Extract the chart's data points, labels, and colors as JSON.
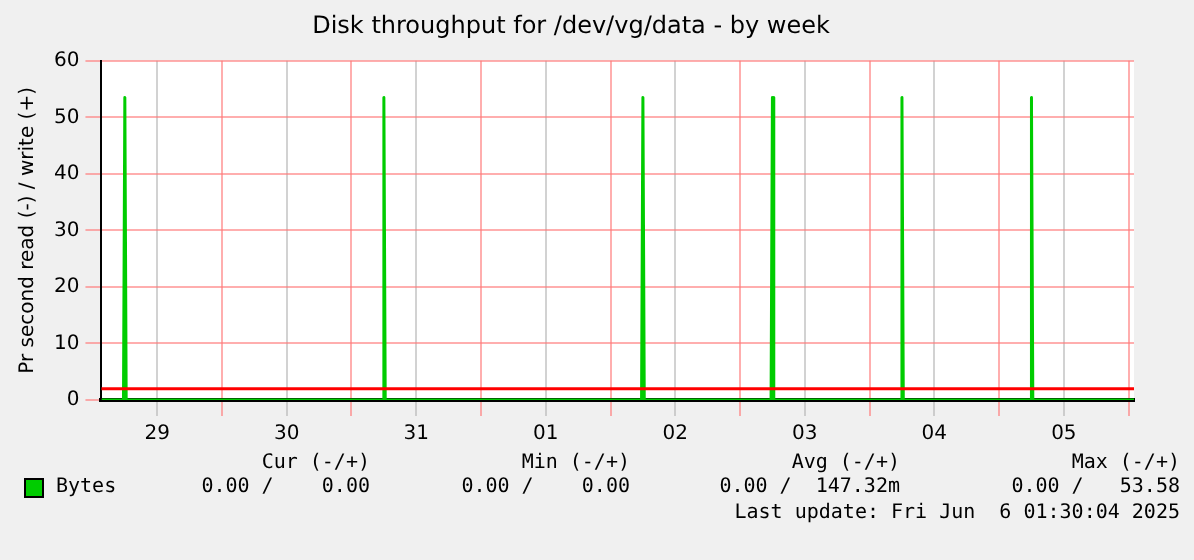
{
  "chart_data": {
    "type": "line",
    "title": "Disk throughput for /dev/vg/data - by week",
    "ylabel": "Pr second read (-) / write (+)",
    "x": [
      "2025-05-29T01:40",
      "2025-05-29T05:45",
      "2025-05-29T06:00",
      "2025-05-29T06:15",
      "2025-05-31T05:45",
      "2025-05-31T06:00",
      "2025-05-31T06:15",
      "2025-06-02T05:45",
      "2025-06-02T06:00",
      "2025-06-02T06:15",
      "2025-06-03T05:45",
      "2025-06-03T06:00",
      "2025-06-03T06:15",
      "2025-06-04T05:45",
      "2025-06-04T06:00",
      "2025-06-04T06:15",
      "2025-06-05T05:45",
      "2025-06-05T06:00",
      "2025-06-05T06:15",
      "2025-06-06T01:00"
    ],
    "series": [
      {
        "name": "Bytes",
        "color": "#00cc00",
        "values": [
          0,
          0,
          53.5,
          0,
          0,
          53.5,
          0,
          0,
          53.5,
          0,
          0,
          53.5,
          0,
          0,
          53.5,
          0,
          0,
          53.5,
          0,
          0
        ]
      }
    ],
    "xlim": [
      "2025-05-29T01:40",
      "2025-06-06T01:00"
    ],
    "xticks": [
      {
        "value": "2025-05-29T12:00",
        "label": "29"
      },
      {
        "value": "2025-05-30T00:00",
        "label": null
      },
      {
        "value": "2025-05-30T12:00",
        "label": "30"
      },
      {
        "value": "2025-05-31T00:00",
        "label": null
      },
      {
        "value": "2025-05-31T12:00",
        "label": "31"
      },
      {
        "value": "2025-06-01T00:00",
        "label": null
      },
      {
        "value": "2025-06-01T12:00",
        "label": "01"
      },
      {
        "value": "2025-06-02T00:00",
        "label": null
      },
      {
        "value": "2025-06-02T12:00",
        "label": "02"
      },
      {
        "value": "2025-06-03T00:00",
        "label": null
      },
      {
        "value": "2025-06-03T12:00",
        "label": "03"
      },
      {
        "value": "2025-06-04T00:00",
        "label": null
      },
      {
        "value": "2025-06-04T12:00",
        "label": "04"
      },
      {
        "value": "2025-06-05T00:00",
        "label": null
      },
      {
        "value": "2025-06-05T12:00",
        "label": "05"
      },
      {
        "value": "2025-06-06T00:00",
        "label": null
      }
    ],
    "ylim": [
      0,
      60
    ],
    "yticks": [
      0,
      10,
      20,
      30,
      40,
      50,
      60
    ],
    "ref_lines": [
      {
        "axis": "y",
        "value": 2,
        "color": "#ff0000"
      }
    ],
    "grid": true,
    "legend": "bottom",
    "marker": "none",
    "line_style": "solid",
    "annotations": [
      "Cur (-/+)",
      "Min (-/+)",
      "Avg (-/+)",
      "Max (-/+)",
      "0.00 /    0.00",
      "0.00 /    0.00",
      "0.00 /  147.32m",
      "0.00 /   53.58",
      "Last update: Fri Jun  6 01:30:04 2025"
    ]
  }
}
